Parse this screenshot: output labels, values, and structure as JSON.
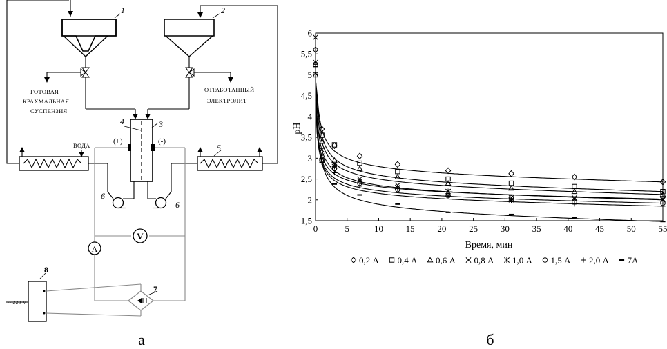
{
  "diagram": {
    "caption": "а",
    "labels": {
      "starch": [
        "ГОТОВАЯ",
        "КРАХМАЛЬНАЯ",
        "СУСПЕНЗИЯ"
      ],
      "electrolyte": [
        "ОТРАБОТАННЫЙ",
        "ЭЛЕКТРОЛИТ"
      ],
      "water": "ВОДА",
      "plus": "(+)",
      "minus": "(-)",
      "ammeter": "A",
      "voltmeter": "V",
      "mains": "~ 220 V"
    },
    "numbers": {
      "n1": "1",
      "n2": "2",
      "n3": "3",
      "n4": "4",
      "n5": "5",
      "n6a": "6",
      "n6b": "6",
      "n7": "7",
      "n8": "8"
    }
  },
  "chart_data": {
    "type": "scatter",
    "caption": "б",
    "xlabel": "Время, мин",
    "ylabel": "pH",
    "xlim": [
      0,
      55
    ],
    "ylim": [
      1.5,
      6
    ],
    "xticks": [
      "0",
      "5",
      "10",
      "15",
      "20",
      "25",
      "30",
      "35",
      "40",
      "45",
      "50",
      "55"
    ],
    "yticks": [
      "1,5",
      "2",
      "2,5",
      "3",
      "3,5",
      "4",
      "4,5",
      "5",
      "5,5",
      "6"
    ],
    "x": [
      0,
      1,
      3,
      7,
      13,
      21,
      31,
      41,
      55
    ],
    "series": [
      {
        "name": "0,2 А",
        "marker": "diamond",
        "values": [
          5.6,
          3.7,
          3.3,
          3.05,
          2.85,
          2.7,
          2.63,
          2.55,
          2.43
        ]
      },
      {
        "name": "0,4 А",
        "marker": "square",
        "values": [
          5.0,
          3.55,
          3.32,
          2.88,
          2.68,
          2.5,
          2.4,
          2.32,
          2.2
        ]
      },
      {
        "name": "0,6 А",
        "marker": "triangle",
        "values": [
          5.0,
          3.4,
          2.95,
          2.75,
          2.55,
          2.4,
          2.28,
          2.2,
          2.13
        ]
      },
      {
        "name": "0,8 А",
        "marker": "x",
        "values": [
          5.3,
          3.2,
          2.85,
          2.5,
          2.35,
          2.2,
          2.05,
          2.05,
          2.0
        ]
      },
      {
        "name": "1,0 А",
        "marker": "asterisk",
        "values": [
          5.9,
          3.05,
          2.8,
          2.45,
          2.3,
          2.2,
          2.0,
          2.02,
          2.02
        ]
      },
      {
        "name": "1,5 А",
        "marker": "circle",
        "values": [
          5.25,
          2.95,
          2.75,
          2.4,
          2.25,
          2.1,
          2.05,
          1.95,
          1.92
        ]
      },
      {
        "name": "2,0 А",
        "marker": "plus",
        "values": [
          5.25,
          2.9,
          2.65,
          2.33,
          2.27,
          2.1,
          1.98,
          1.9,
          1.85
        ]
      },
      {
        "name": "7А",
        "marker": "dash",
        "values": [
          5.2,
          2.9,
          2.38,
          2.12,
          1.9,
          1.7,
          1.65,
          1.58,
          1.48
        ]
      }
    ]
  }
}
